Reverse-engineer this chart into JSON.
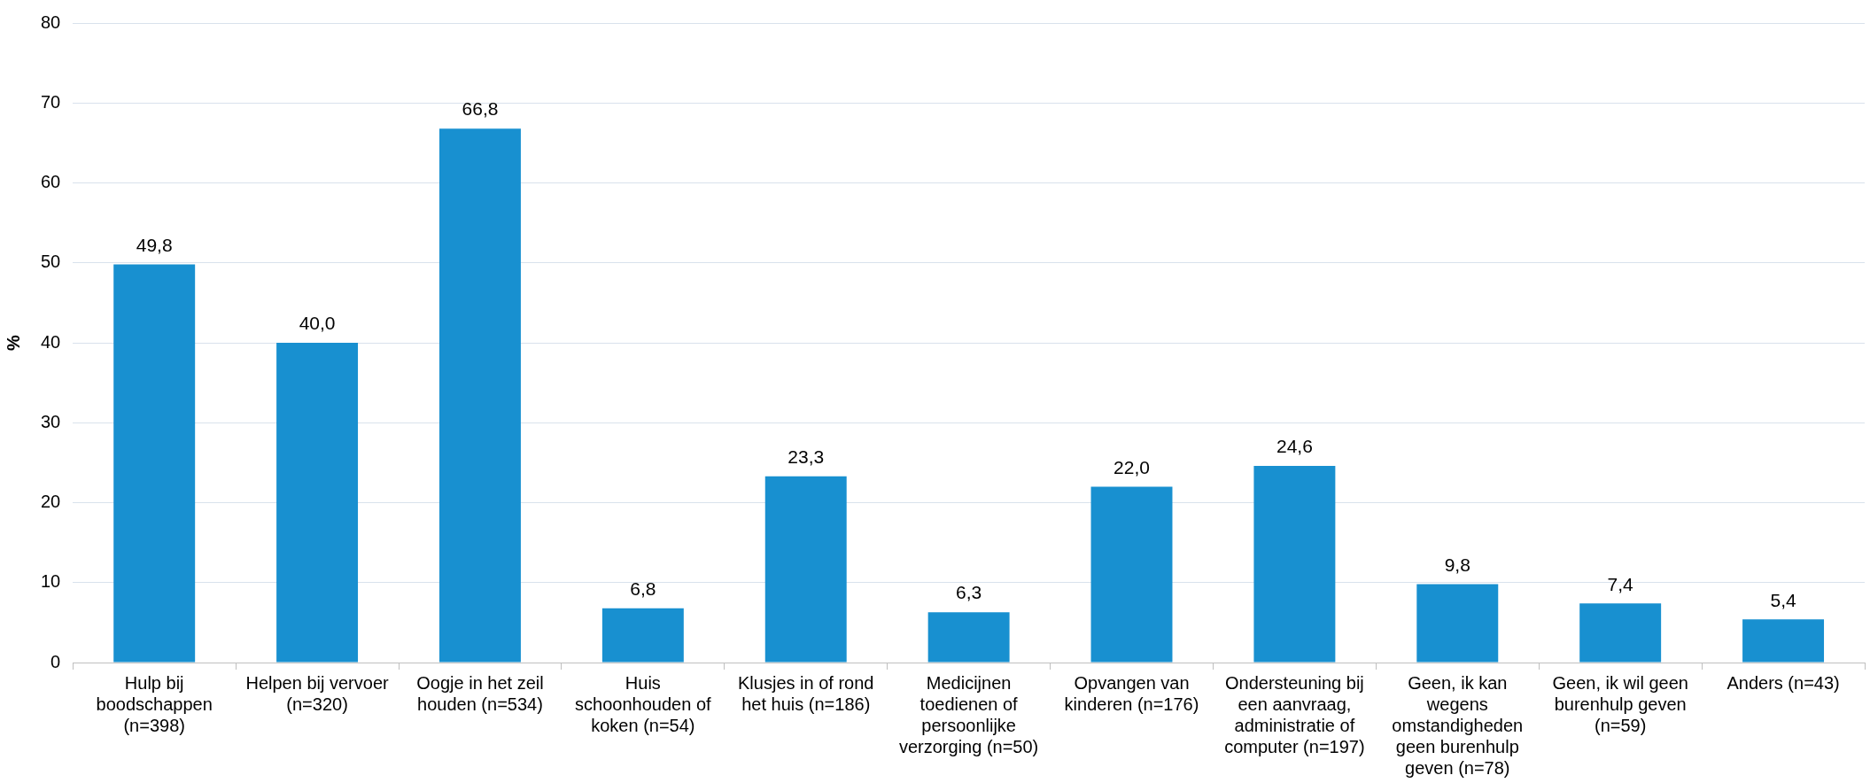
{
  "chart_data": {
    "type": "bar",
    "ylabel": "%",
    "categories": [
      "Hulp bij boodschappen (n=398)",
      "Helpen bij vervoer (n=320)",
      "Oogje in het zeil houden (n=534)",
      "Huis schoonhouden of koken (n=54)",
      "Klusjes in of rond het huis (n=186)",
      "Medicijnen toedienen of persoonlijke verzorging (n=50)",
      "Opvangen van kinderen (n=176)",
      "Ondersteuning bij een aanvraag, administratie of computer (n=197)",
      "Geen, ik kan wegens omstandigheden geen burenhulp geven (n=78)",
      "Geen, ik wil geen burenhulp geven (n=59)",
      "Anders (n=43)"
    ],
    "values": [
      49.8,
      40.0,
      66.8,
      6.8,
      23.3,
      6.3,
      22.0,
      24.6,
      9.8,
      7.4,
      5.4
    ],
    "value_labels": [
      "49,8",
      "40,0",
      "66,8",
      "6,8",
      "23,3",
      "6,3",
      "22,0",
      "24,6",
      "9,8",
      "7,4",
      "5,4"
    ],
    "color": "#1890d0",
    "ylim": [
      0,
      80
    ],
    "yticks": [
      0,
      10,
      20,
      30,
      40,
      50,
      60,
      70,
      80
    ],
    "grid": "y"
  }
}
